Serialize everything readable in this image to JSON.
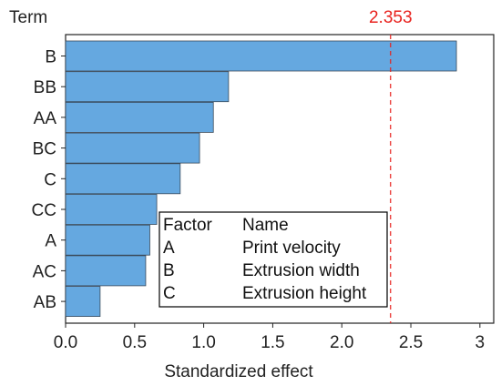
{
  "chart_data": {
    "type": "bar",
    "orientation": "horizontal",
    "ylabel": "Term",
    "xlabel": "Standardized effect",
    "categories": [
      "B",
      "BB",
      "AA",
      "BC",
      "C",
      "CC",
      "A",
      "AC",
      "AB"
    ],
    "values": [
      2.83,
      1.18,
      1.07,
      0.97,
      0.83,
      0.66,
      0.61,
      0.58,
      0.25
    ],
    "xlim": [
      0,
      3.1
    ],
    "xticks": [
      "0.0",
      "0.5",
      "1.0",
      "1.5",
      "2.0",
      "2.5",
      "3"
    ],
    "xtick_values": [
      0,
      0.5,
      1.0,
      1.5,
      2.0,
      2.5,
      3
    ],
    "reference_line": {
      "value": 2.353,
      "label": "2.353",
      "color": "#e8211d",
      "style": "dashed"
    },
    "bar_color": "#65a8e0",
    "bar_edge_color": "#3a4a5a",
    "grid": false,
    "legend_table": {
      "headers": [
        "Factor",
        "Name"
      ],
      "rows": [
        [
          "A",
          "Print velocity"
        ],
        [
          "B",
          "Extrusion width"
        ],
        [
          "C",
          "Extrusion height"
        ]
      ]
    }
  }
}
